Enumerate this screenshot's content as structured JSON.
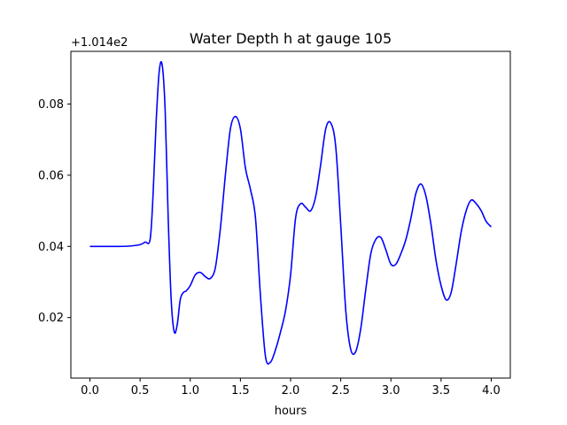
{
  "chart_data": {
    "type": "line",
    "title": "Water Depth h at gauge 105",
    "xlabel": "hours",
    "ylabel": "",
    "offset_label": "+1.014e2",
    "xlim": [
      -0.19,
      4.19
    ],
    "ylim": [
      0.003,
      0.0948
    ],
    "xticks": [
      {
        "value": 0.0,
        "label": "0.0"
      },
      {
        "value": 0.5,
        "label": "0.5"
      },
      {
        "value": 1.0,
        "label": "1.0"
      },
      {
        "value": 1.5,
        "label": "1.5"
      },
      {
        "value": 2.0,
        "label": "2.0"
      },
      {
        "value": 2.5,
        "label": "2.5"
      },
      {
        "value": 3.0,
        "label": "3.0"
      },
      {
        "value": 3.5,
        "label": "3.5"
      },
      {
        "value": 4.0,
        "label": "4.0"
      }
    ],
    "yticks": [
      {
        "value": 0.02,
        "label": "0.02"
      },
      {
        "value": 0.04,
        "label": "0.04"
      },
      {
        "value": 0.06,
        "label": "0.06"
      },
      {
        "value": 0.08,
        "label": "0.08"
      }
    ],
    "grid": false,
    "series": [
      {
        "color": "#0000ff",
        "x": [
          0.0,
          0.1,
          0.2,
          0.3,
          0.4,
          0.5,
          0.55,
          0.6,
          0.63,
          0.66,
          0.69,
          0.72,
          0.75,
          0.78,
          0.81,
          0.84,
          0.87,
          0.9,
          0.93,
          0.96,
          1.0,
          1.05,
          1.1,
          1.15,
          1.2,
          1.25,
          1.3,
          1.35,
          1.4,
          1.45,
          1.5,
          1.55,
          1.6,
          1.65,
          1.7,
          1.75,
          1.8,
          1.85,
          1.9,
          1.95,
          2.0,
          2.05,
          2.1,
          2.15,
          2.2,
          2.25,
          2.3,
          2.35,
          2.4,
          2.45,
          2.5,
          2.55,
          2.6,
          2.65,
          2.7,
          2.75,
          2.8,
          2.85,
          2.9,
          2.95,
          3.0,
          3.05,
          3.1,
          3.15,
          3.2,
          3.25,
          3.3,
          3.35,
          3.4,
          3.45,
          3.5,
          3.55,
          3.6,
          3.65,
          3.7,
          3.75,
          3.8,
          3.85,
          3.9,
          3.95,
          4.0
        ],
        "y": [
          0.04,
          0.04,
          0.04,
          0.04,
          0.0401,
          0.0405,
          0.0412,
          0.042,
          0.055,
          0.075,
          0.089,
          0.091,
          0.078,
          0.048,
          0.025,
          0.016,
          0.018,
          0.025,
          0.027,
          0.0275,
          0.029,
          0.032,
          0.0327,
          0.0315,
          0.031,
          0.034,
          0.045,
          0.06,
          0.073,
          0.0765,
          0.073,
          0.062,
          0.056,
          0.048,
          0.026,
          0.009,
          0.0075,
          0.011,
          0.016,
          0.022,
          0.032,
          0.048,
          0.052,
          0.051,
          0.05,
          0.054,
          0.063,
          0.073,
          0.0747,
          0.068,
          0.046,
          0.022,
          0.011,
          0.0105,
          0.017,
          0.028,
          0.038,
          0.042,
          0.0425,
          0.039,
          0.035,
          0.035,
          0.038,
          0.042,
          0.048,
          0.055,
          0.0575,
          0.054,
          0.046,
          0.036,
          0.029,
          0.025,
          0.027,
          0.035,
          0.044,
          0.05,
          0.053,
          0.052,
          0.05,
          0.047,
          0.0455
        ]
      }
    ]
  }
}
